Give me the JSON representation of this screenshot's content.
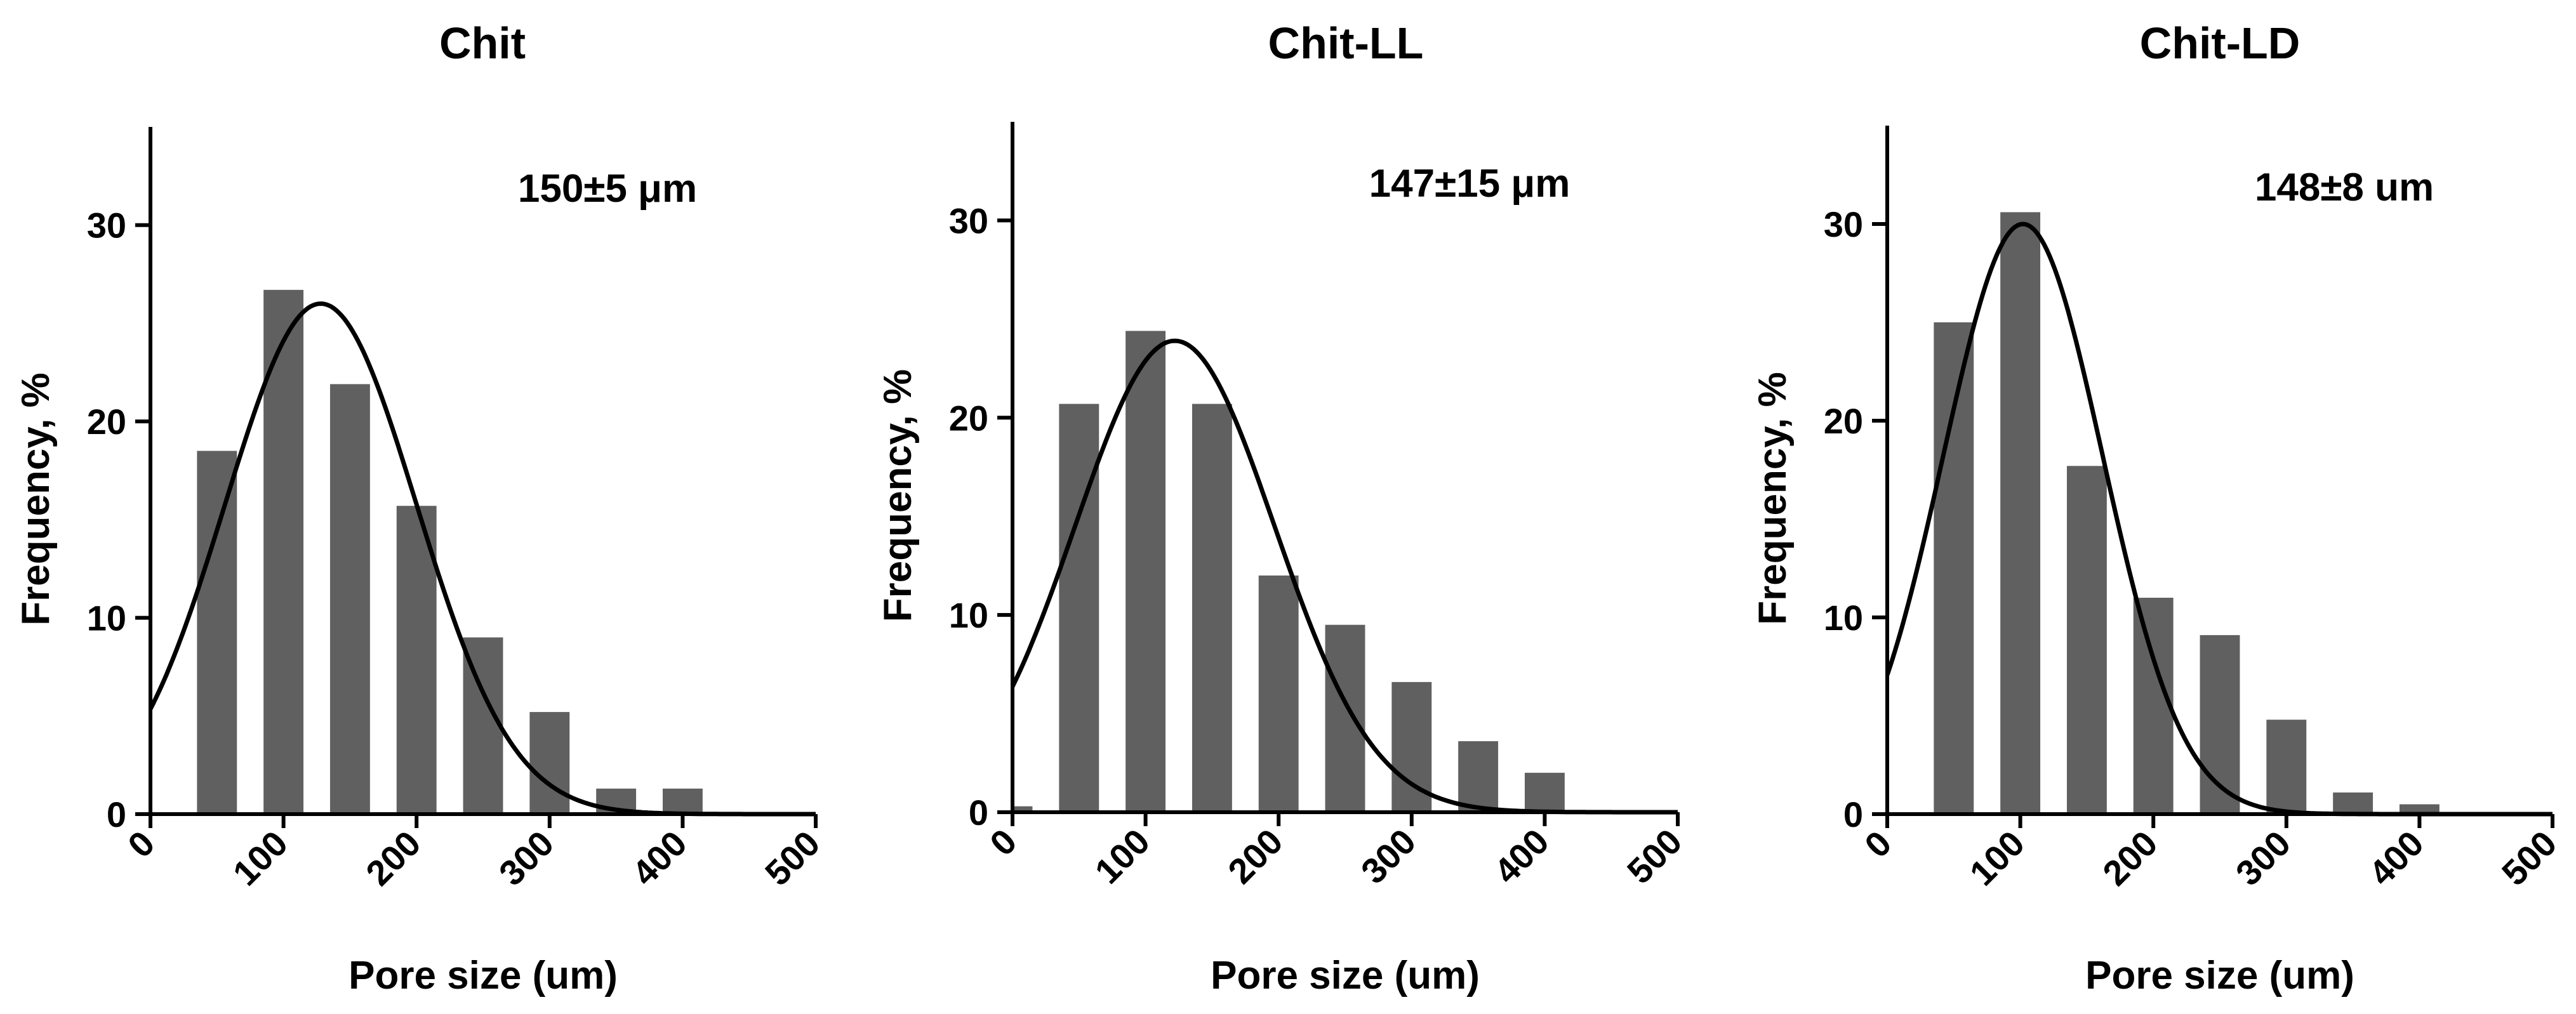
{
  "chart_data": [
    {
      "type": "bar",
      "title": "Chit",
      "annotation": "150±5 μm",
      "xlabel": "Pore size (um)",
      "ylabel": "Frequency, %",
      "xlim": [
        0,
        500
      ],
      "ylim": [
        0,
        35
      ],
      "xticks": [
        "0",
        "100",
        "200",
        "300",
        "400",
        "500"
      ],
      "yticks": [
        "0",
        "10",
        "20",
        "30"
      ],
      "bar_centers": [
        50,
        100,
        150,
        200,
        250,
        300,
        350,
        400
      ],
      "values": [
        18.5,
        26.7,
        21.9,
        15.7,
        9.0,
        5.2,
        1.3,
        1.3
      ],
      "fit": {
        "type": "gaussian",
        "amplitude": 26.0,
        "mean": 128,
        "sd": 72
      }
    },
    {
      "type": "bar",
      "title": "Chit-LL",
      "annotation": "147±15 μm",
      "xlabel": "Pore size (um)",
      "ylabel": "Frequency, %",
      "xlim": [
        0,
        500
      ],
      "ylim": [
        0,
        35
      ],
      "xticks": [
        "0",
        "100",
        "200",
        "300",
        "400",
        "500"
      ],
      "yticks": [
        "0",
        "10",
        "20",
        "30"
      ],
      "bar_centers": [
        0,
        50,
        100,
        150,
        200,
        250,
        300,
        350,
        400
      ],
      "values": [
        0.3,
        20.7,
        24.4,
        20.7,
        12.0,
        9.5,
        6.6,
        3.6,
        2.0
      ],
      "fit": {
        "type": "gaussian",
        "amplitude": 23.9,
        "mean": 122,
        "sd": 75
      }
    },
    {
      "type": "bar",
      "title": "Chit-LD",
      "annotation": "148±8 um",
      "xlabel": "Pore size (um)",
      "ylabel": "Frequency, %",
      "xlim": [
        0,
        500
      ],
      "ylim": [
        0,
        35
      ],
      "xticks": [
        "0",
        "100",
        "200",
        "300",
        "400",
        "500"
      ],
      "yticks": [
        "0",
        "10",
        "20",
        "30"
      ],
      "bar_centers": [
        50,
        100,
        150,
        200,
        250,
        300,
        350,
        400
      ],
      "values": [
        25.0,
        30.6,
        17.7,
        11.0,
        9.1,
        4.8,
        1.1,
        0.5
      ],
      "fit": {
        "type": "gaussian",
        "amplitude": 30.0,
        "mean": 102,
        "sd": 60
      }
    }
  ]
}
